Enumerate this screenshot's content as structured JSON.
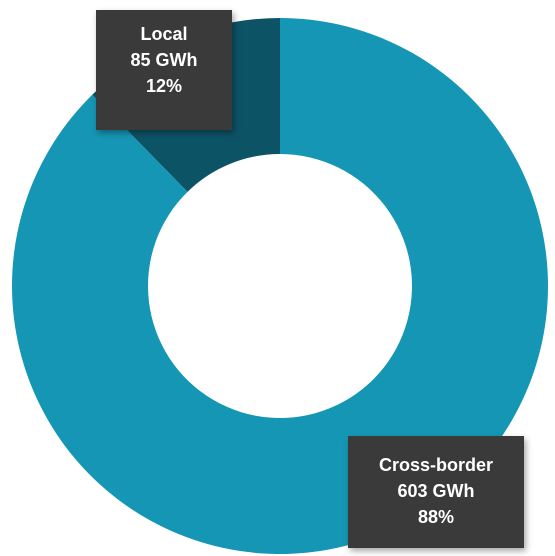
{
  "chart_data": {
    "type": "pie",
    "donut": true,
    "slices": [
      {
        "name": "Local",
        "value": 85,
        "unit": "GWh",
        "percent": "12%",
        "color": "#0d5366"
      },
      {
        "name": "Cross-border",
        "value": 603,
        "unit": "GWh",
        "percent": "88%",
        "color": "#1596b4"
      }
    ],
    "labels": {
      "local": {
        "name": "Local",
        "value": "85 GWh",
        "percent": "12%"
      },
      "cross": {
        "name": "Cross-border",
        "value": "603 GWh",
        "percent": "88%"
      }
    },
    "label_box_color": "#3a3a3a"
  }
}
